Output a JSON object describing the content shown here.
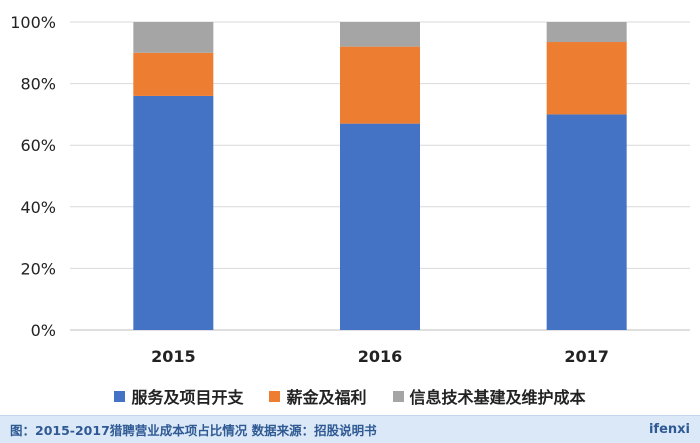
{
  "chart_data": {
    "type": "bar",
    "stacked": true,
    "categories": [
      "2015",
      "2016",
      "2017"
    ],
    "series": [
      {
        "name": "服务及项目开支",
        "values": [
          76,
          67,
          70
        ],
        "color": "#4472c4"
      },
      {
        "name": "薪金及福利",
        "values": [
          14,
          25,
          23.5
        ],
        "color": "#ed7d31"
      },
      {
        "name": "信息技术基建及维护成本",
        "values": [
          10,
          8,
          6.5
        ],
        "color": "#a5a5a5"
      }
    ],
    "ylim": [
      0,
      100
    ],
    "yticks": [
      "0%",
      "20%",
      "40%",
      "60%",
      "80%",
      "100%"
    ],
    "grid": true,
    "legend_position": "bottom"
  },
  "footer": {
    "caption": "图：2015-2017猎聘营业成本项占比情况    数据来源：招股说明书",
    "brand": "ifenxi"
  }
}
